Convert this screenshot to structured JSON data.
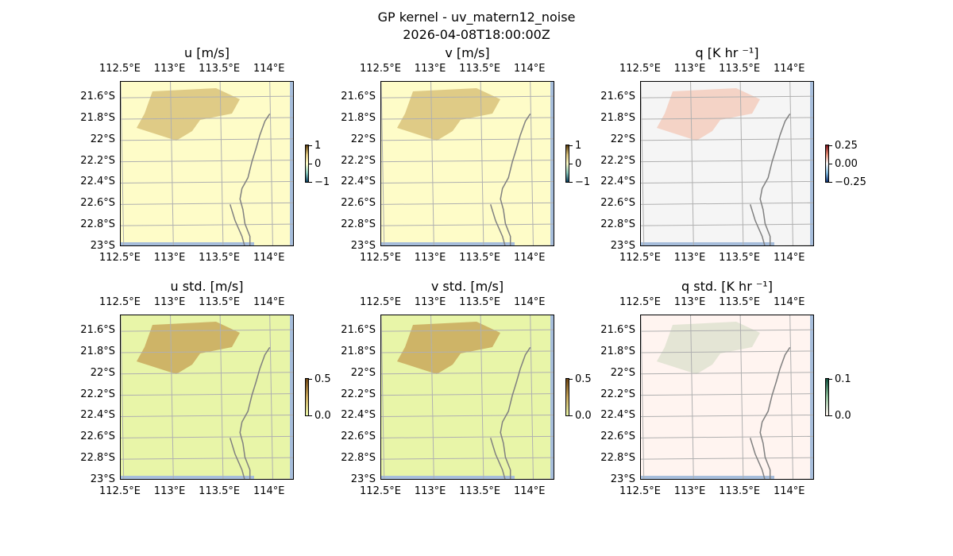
{
  "figure": {
    "title": "GP kernel - uv_matern12_noise",
    "timestamp": "2026-04-08T18:00:00Z"
  },
  "map_extent": {
    "lon": [
      112.5,
      114.25
    ],
    "lat": [
      -23.0,
      -21.45
    ]
  },
  "lon_ticks": [
    112.5,
    113.0,
    113.5,
    114.0
  ],
  "lon_labels": [
    "112.5°E",
    "113°E",
    "113.5°E",
    "114°E"
  ],
  "lat_ticks": [
    -21.6,
    -21.8,
    -22.0,
    -22.2,
    -22.4,
    -22.6,
    -22.8,
    -23.0
  ],
  "lat_labels": [
    "21.6°S",
    "21.8°S",
    "22°S",
    "22.2°S",
    "22.4°S",
    "22.6°S",
    "22.8°S",
    "23°S"
  ],
  "panels": [
    {
      "id": "u",
      "title": "u [m/s]",
      "background": "#fefcc8",
      "blob": "#d9c27a",
      "colorbar": {
        "labels": [
          "1",
          "0",
          "−1"
        ],
        "colors": [
          "#5a3b0a",
          "#d9c27a",
          "#fefcc8",
          "#86c6b9",
          "#0b3c5c"
        ]
      }
    },
    {
      "id": "v",
      "title": "v [m/s]",
      "background": "#fefcc8",
      "blob": "#d9c27a",
      "colorbar": {
        "labels": [
          "1",
          "0",
          "−1"
        ],
        "colors": [
          "#5a3b0a",
          "#d9c27a",
          "#fefcc8",
          "#86c6b9",
          "#0b3c5c"
        ]
      }
    },
    {
      "id": "q",
      "title": "q [K hr ⁻¹]",
      "background": "#f5f5f5",
      "blob": "#f3cdbd",
      "colorbar": {
        "labels": [
          "0.25",
          "0.00",
          "−0.25"
        ],
        "colors": [
          "#7a1018",
          "#e38a72",
          "#f6f6f6",
          "#7fb8dc",
          "#0d2f6e"
        ]
      }
    },
    {
      "id": "u_std",
      "title": "u std. [m/s]",
      "background": "#e8f5a8",
      "blob": "#c9a85c",
      "colorbar": {
        "labels": [
          "0.5",
          "0.0"
        ],
        "colors": [
          "#6b4312",
          "#c9a85c",
          "#e8f5a8"
        ]
      }
    },
    {
      "id": "v_std",
      "title": "v std. [m/s]",
      "background": "#e8f5a8",
      "blob": "#c9a85c",
      "colorbar": {
        "labels": [
          "0.5",
          "0.0"
        ],
        "colors": [
          "#6b4312",
          "#c9a85c",
          "#e8f5a8"
        ]
      }
    },
    {
      "id": "q_std",
      "title": "q std. [K hr ⁻¹]",
      "background": "#fff4f0",
      "blob": "#dfe2d0",
      "colorbar": {
        "labels": [
          "0.1",
          "0.0"
        ],
        "colors": [
          "#0d4d3a",
          "#8fbf9a",
          "#fff4f0"
        ]
      }
    }
  ],
  "colors": {
    "land": "#ffffff",
    "sea_edge": "#a6bddb",
    "coastline": "#808080",
    "grid": "#b0b0b0"
  }
}
